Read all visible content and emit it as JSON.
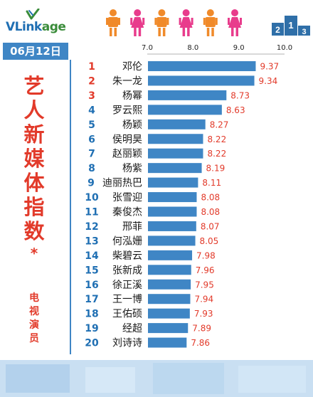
{
  "brand": {
    "logo_prefix": "VLink",
    "logo_suffix": "age"
  },
  "date": "06月12日",
  "side": {
    "title_chars": [
      "艺",
      "人",
      "新",
      "媒",
      "体",
      "指",
      "数"
    ],
    "star": "*",
    "subtitle_chars": [
      "电",
      "视",
      "演",
      "员"
    ]
  },
  "colors": {
    "bar": "#3f86c5",
    "rank": "#1f6fb3",
    "rank_top3": "#e23a2a",
    "value": "#e23a2a",
    "figure_orange": "#f08a2a",
    "figure_pink": "#e83c8c"
  },
  "icons": [
    "vlinkage-logo-icon",
    "people-icon",
    "podium-icon"
  ],
  "chart_data": {
    "type": "bar",
    "orientation": "horizontal",
    "x_ticks": [
      "7.0",
      "8.0",
      "9.0",
      "10.0"
    ],
    "xlim": [
      7.0,
      10.0
    ],
    "grid": false,
    "rows": [
      {
        "rank": "1",
        "name": "邓伦",
        "value": 9.37,
        "label": "9.37"
      },
      {
        "rank": "2",
        "name": "朱一龙",
        "value": 9.34,
        "label": "9.34"
      },
      {
        "rank": "3",
        "name": "杨幂",
        "value": 8.73,
        "label": "8.73"
      },
      {
        "rank": "4",
        "name": "罗云熙",
        "value": 8.63,
        "label": "8.63"
      },
      {
        "rank": "5",
        "name": "杨颖",
        "value": 8.27,
        "label": "8.27"
      },
      {
        "rank": "6",
        "name": "侯明昊",
        "value": 8.22,
        "label": "8.22"
      },
      {
        "rank": "7",
        "name": "赵丽颖",
        "value": 8.22,
        "label": "8.22"
      },
      {
        "rank": "8",
        "name": "杨紫",
        "value": 8.19,
        "label": "8.19"
      },
      {
        "rank": "9",
        "name": "迪丽热巴",
        "value": 8.11,
        "label": "8.11"
      },
      {
        "rank": "10",
        "name": "张雪迎",
        "value": 8.08,
        "label": "8.08"
      },
      {
        "rank": "11",
        "name": "秦俊杰",
        "value": 8.08,
        "label": "8.08"
      },
      {
        "rank": "12",
        "name": "邢菲",
        "value": 8.07,
        "label": "8.07"
      },
      {
        "rank": "13",
        "name": "何泓姗",
        "value": 8.05,
        "label": "8.05"
      },
      {
        "rank": "14",
        "name": "柴碧云",
        "value": 7.98,
        "label": "7.98"
      },
      {
        "rank": "15",
        "name": "张新成",
        "value": 7.96,
        "label": "7.96"
      },
      {
        "rank": "16",
        "name": "徐正溪",
        "value": 7.95,
        "label": "7.95"
      },
      {
        "rank": "17",
        "name": "王一博",
        "value": 7.94,
        "label": "7.94"
      },
      {
        "rank": "18",
        "name": "王佑硕",
        "value": 7.93,
        "label": "7.93"
      },
      {
        "rank": "19",
        "name": "经超",
        "value": 7.89,
        "label": "7.89"
      },
      {
        "rank": "20",
        "name": "刘诗诗",
        "value": 7.86,
        "label": "7.86"
      }
    ]
  }
}
